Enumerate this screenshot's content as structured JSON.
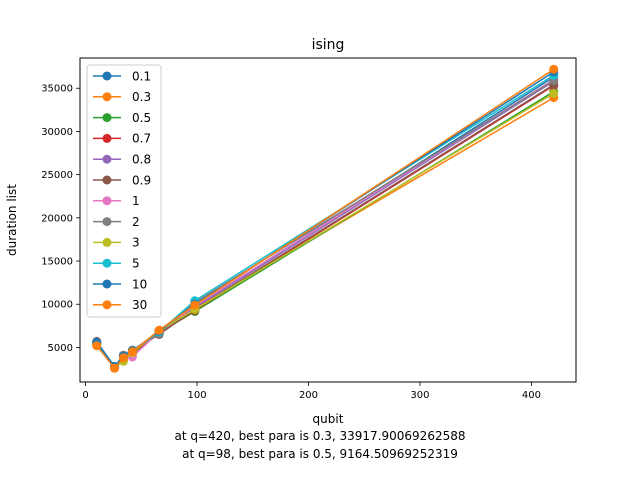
{
  "chart_data": {
    "type": "line",
    "title": "ising",
    "xlabel": "qubit",
    "ylabel": "duration list",
    "xlim": [
      -5,
      440
    ],
    "ylim": [
      1000,
      38500
    ],
    "xticks": [
      0,
      100,
      200,
      300,
      400
    ],
    "yticks": [
      5000,
      10000,
      15000,
      20000,
      25000,
      30000,
      35000
    ],
    "x": [
      10,
      26,
      34,
      42,
      66,
      98,
      420
    ],
    "legend_position": "upper-left",
    "grid": false,
    "series": [
      {
        "name": "0.1",
        "color": "#1f77b4",
        "values": [
          5500,
          2700,
          3800,
          4500,
          6600,
          9700,
          36300
        ]
      },
      {
        "name": "0.3",
        "color": "#ff7f0e",
        "values": [
          5300,
          2600,
          3500,
          4200,
          6800,
          9500,
          33917.90069262588
        ]
      },
      {
        "name": "0.5",
        "color": "#2ca02c",
        "values": [
          5400,
          2700,
          3600,
          4300,
          6700,
          9164.50969252319,
          34600
        ]
      },
      {
        "name": "0.7",
        "color": "#d62728",
        "values": [
          5500,
          2800,
          3700,
          4400,
          6600,
          9300,
          35300
        ]
      },
      {
        "name": "0.8",
        "color": "#9467bd",
        "values": [
          5600,
          2700,
          4000,
          4500,
          6700,
          9600,
          35800
        ]
      },
      {
        "name": "0.9",
        "color": "#8c564b",
        "values": [
          5700,
          2700,
          4100,
          4600,
          6500,
          9400,
          35400
        ]
      },
      {
        "name": "1",
        "color": "#e377c2",
        "values": [
          5500,
          2600,
          3600,
          3900,
          6800,
          9800,
          36000
        ]
      },
      {
        "name": "2",
        "color": "#7f7f7f",
        "values": [
          5600,
          2800,
          4100,
          4700,
          6600,
          10200,
          35900
        ]
      },
      {
        "name": "3",
        "color": "#bcbd22",
        "values": [
          5400,
          2700,
          3400,
          4400,
          6900,
          9400,
          34400
        ]
      },
      {
        "name": "5",
        "color": "#17becf",
        "values": [
          5500,
          2700,
          3900,
          4600,
          6800,
          10400,
          36500
        ]
      },
      {
        "name": "10",
        "color": "#1f77b4",
        "values": [
          5600,
          2800,
          4000,
          4600,
          6900,
          10000,
          36900
        ]
      },
      {
        "name": "30",
        "color": "#ff7f0e",
        "values": [
          5200,
          2600,
          3800,
          4500,
          7000,
          9900,
          37200
        ]
      }
    ]
  },
  "captions": {
    "line1": "at q=420, best para is 0.3, 33917.90069262588",
    "line2": "at q=98, best para is 0.5, 9164.50969252319"
  }
}
